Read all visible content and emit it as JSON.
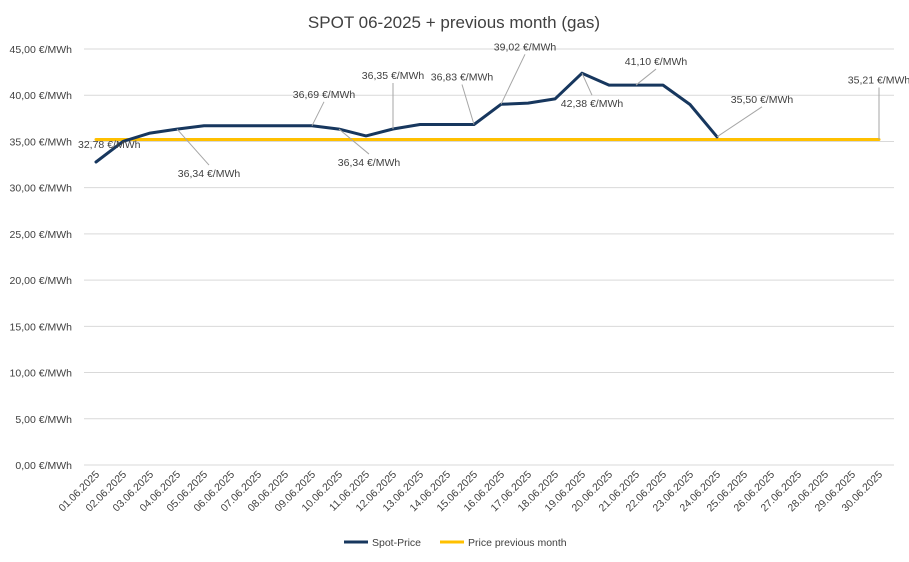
{
  "chart_data": {
    "type": "line",
    "title": "SPOT 06-2025 + previous month (gas)",
    "xlabel": "",
    "ylabel": "",
    "ylim": [
      0,
      45
    ],
    "y_ticks": [
      "0,00 €/MWh",
      "5,00 €/MWh",
      "10,00 €/MWh",
      "15,00 €/MWh",
      "20,00 €/MWh",
      "25,00 €/MWh",
      "30,00 €/MWh",
      "35,00 €/MWh",
      "40,00 €/MWh",
      "45,00 €/MWh"
    ],
    "categories": [
      "01.06.2025",
      "02.06.2025",
      "03.06.2025",
      "04.06.2025",
      "05.06.2025",
      "06.06.2025",
      "07.06.2025",
      "08.06.2025",
      "09.06.2025",
      "10.06.2025",
      "11.06.2025",
      "12.06.2025",
      "13.06.2025",
      "14.06.2025",
      "15.06.2025",
      "16.06.2025",
      "17.06.2025",
      "18.06.2025",
      "19.06.2025",
      "20.06.2025",
      "21.06.2025",
      "22.06.2025",
      "23.06.2025",
      "24.06.2025",
      "25.06.2025",
      "26.06.2025",
      "27.06.2025",
      "28.06.2025",
      "29.06.2025",
      "30.06.2025"
    ],
    "series": [
      {
        "name": "Spot-Price",
        "color": "#17375e",
        "values": [
          32.78,
          35.0,
          35.9,
          36.34,
          36.69,
          36.69,
          36.69,
          36.69,
          36.69,
          36.34,
          35.6,
          36.35,
          36.83,
          36.83,
          36.83,
          39.02,
          39.15,
          39.6,
          42.38,
          41.1,
          41.1,
          41.1,
          39.0,
          35.5,
          null,
          null,
          null,
          null,
          null,
          null
        ]
      },
      {
        "name": "Price previous month",
        "color": "#ffc000",
        "values": [
          35.21,
          35.21,
          35.21,
          35.21,
          35.21,
          35.21,
          35.21,
          35.21,
          35.21,
          35.21,
          35.21,
          35.21,
          35.21,
          35.21,
          35.21,
          35.21,
          35.21,
          35.21,
          35.21,
          35.21,
          35.21,
          35.21,
          35.21,
          35.21,
          35.21,
          35.21,
          35.21,
          35.21,
          35.21,
          35.21
        ]
      }
    ],
    "data_labels": [
      {
        "series": 0,
        "index": 0,
        "text": "32,78 €/MWh"
      },
      {
        "series": 0,
        "index": 3,
        "text": "36,34 €/MWh"
      },
      {
        "series": 0,
        "index": 8,
        "text": "36,69 €/MWh"
      },
      {
        "series": 0,
        "index": 9,
        "text": "36,34 €/MWh"
      },
      {
        "series": 0,
        "index": 11,
        "text": "36,35 €/MWh"
      },
      {
        "series": 0,
        "index": 14,
        "text": "36,83 €/MWh"
      },
      {
        "series": 0,
        "index": 15,
        "text": "39,02 €/MWh"
      },
      {
        "series": 0,
        "index": 18,
        "text": "42,38 €/MWh"
      },
      {
        "series": 0,
        "index": 20,
        "text": "41,10 €/MWh"
      },
      {
        "series": 0,
        "index": 23,
        "text": "35,50 €/MWh"
      },
      {
        "series": 1,
        "index": 29,
        "text": "35,21 €/MWh"
      }
    ],
    "legend": {
      "position": "bottom",
      "entries": [
        "Spot-Price",
        "Price previous month"
      ]
    },
    "grid": true
  }
}
